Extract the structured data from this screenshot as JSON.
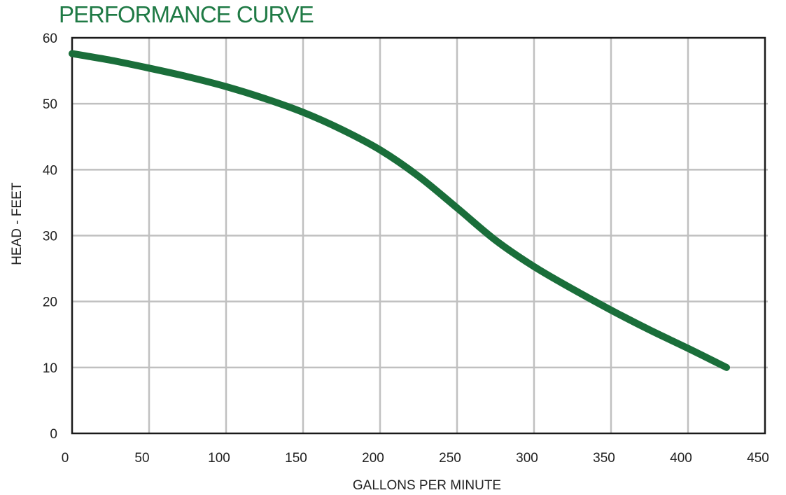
{
  "chart_data": {
    "type": "line",
    "title": "PERFORMANCE CURVE",
    "xlabel": "GALLONS PER MINUTE",
    "ylabel": "HEAD - FEET",
    "xlim": [
      0,
      450
    ],
    "ylim": [
      0,
      60
    ],
    "x_ticks": [
      "0",
      "50",
      "100",
      "150",
      "200",
      "250",
      "300",
      "350",
      "400",
      "450"
    ],
    "y_ticks": [
      "0",
      "10",
      "20",
      "30",
      "40",
      "50",
      "60"
    ],
    "grid": true,
    "legend": "none",
    "colors": {
      "curve": "#1a6e3a",
      "grid": "#c0c0c0",
      "frame": "#1a1a1a",
      "title": "#1f7a45"
    },
    "series": [
      {
        "x": [
          0,
          25,
          50,
          75,
          100,
          125,
          150,
          175,
          200,
          225,
          250,
          275,
          300,
          325,
          350,
          375,
          400,
          425
        ],
        "y": [
          57.6,
          56.6,
          55.4,
          54.1,
          52.6,
          50.8,
          48.7,
          46.1,
          43.0,
          39.0,
          34.2,
          29.3,
          25.3,
          21.9,
          18.7,
          15.7,
          12.9,
          10.0
        ]
      }
    ]
  }
}
